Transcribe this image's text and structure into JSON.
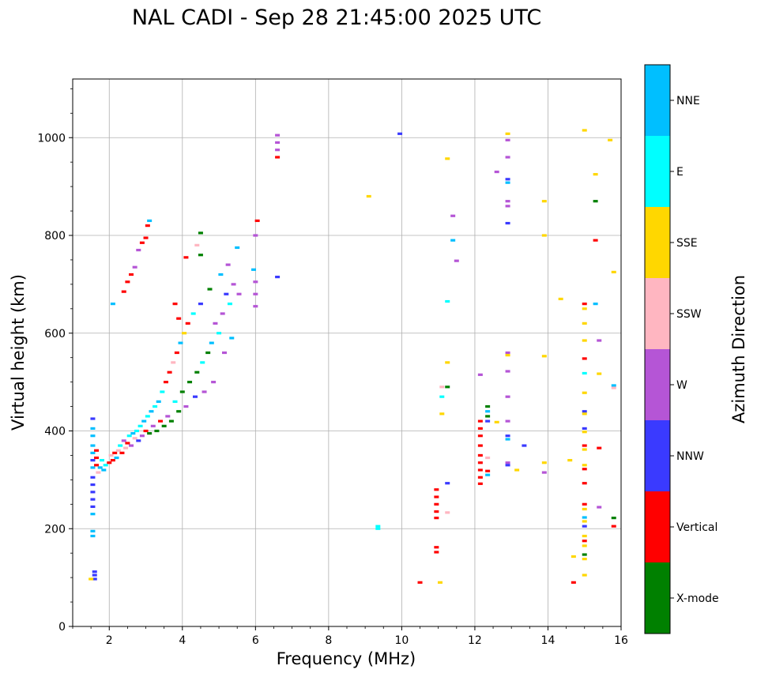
{
  "chart_data": {
    "type": "scatter",
    "title": "NAL CADI - Sep 28 21:45:00 2025 UTC",
    "xlabel": "Frequency (MHz)",
    "ylabel": "Virtual height (km)",
    "xlim": [
      1,
      16
    ],
    "ylim": [
      0,
      1120
    ],
    "xticks": [
      2,
      4,
      6,
      8,
      10,
      12,
      14,
      16
    ],
    "yticks": [
      0,
      200,
      400,
      600,
      800,
      1000
    ],
    "grid": true,
    "colorbar": {
      "label": "Azimuth Direction",
      "categories": [
        {
          "name": "X-mode",
          "color": "#008000"
        },
        {
          "name": "Vertical",
          "color": "#ff0000"
        },
        {
          "name": "NNW",
          "color": "#3a3aff"
        },
        {
          "name": "W",
          "color": "#b555d6"
        },
        {
          "name": "SSW",
          "color": "#ffb6c1"
        },
        {
          "name": "SSE",
          "color": "#ffd700"
        },
        {
          "name": "E",
          "color": "#00ffff"
        },
        {
          "name": "NNE",
          "color": "#00bfff"
        }
      ]
    },
    "points": [
      {
        "f": 1.55,
        "h": 425,
        "c": "NNW"
      },
      {
        "f": 1.55,
        "h": 405,
        "c": "NNE"
      },
      {
        "f": 1.55,
        "h": 390,
        "c": "NNE"
      },
      {
        "f": 1.55,
        "h": 370,
        "c": "NNE"
      },
      {
        "f": 1.55,
        "h": 355,
        "c": "NNE"
      },
      {
        "f": 1.55,
        "h": 340,
        "c": "NNW"
      },
      {
        "f": 1.55,
        "h": 325,
        "c": "NNE"
      },
      {
        "f": 1.55,
        "h": 305,
        "c": "NNW"
      },
      {
        "f": 1.55,
        "h": 290,
        "c": "NNW"
      },
      {
        "f": 1.55,
        "h": 275,
        "c": "NNW"
      },
      {
        "f": 1.55,
        "h": 260,
        "c": "NNW"
      },
      {
        "f": 1.55,
        "h": 245,
        "c": "NNW"
      },
      {
        "f": 1.55,
        "h": 230,
        "c": "NNE"
      },
      {
        "f": 1.55,
        "h": 195,
        "c": "NNE"
      },
      {
        "f": 1.55,
        "h": 185,
        "c": "NNE"
      },
      {
        "f": 1.6,
        "h": 112,
        "c": "NNW"
      },
      {
        "f": 1.6,
        "h": 105,
        "c": "NNW"
      },
      {
        "f": 1.6,
        "h": 97,
        "c": "NNW"
      },
      {
        "f": 1.5,
        "h": 97,
        "c": "SSE"
      },
      {
        "f": 1.65,
        "h": 360,
        "c": "Vertical"
      },
      {
        "f": 1.65,
        "h": 345,
        "c": "Vertical"
      },
      {
        "f": 1.65,
        "h": 330,
        "c": "Vertical"
      },
      {
        "f": 1.7,
        "h": 315,
        "c": "SSW"
      },
      {
        "f": 1.75,
        "h": 325,
        "c": "NNE"
      },
      {
        "f": 1.8,
        "h": 340,
        "c": "E"
      },
      {
        "f": 1.85,
        "h": 320,
        "c": "NNE"
      },
      {
        "f": 1.9,
        "h": 330,
        "c": "E"
      },
      {
        "f": 2.0,
        "h": 335,
        "c": "Vertical"
      },
      {
        "f": 2.05,
        "h": 350,
        "c": "SSW"
      },
      {
        "f": 2.1,
        "h": 340,
        "c": "Vertical"
      },
      {
        "f": 2.15,
        "h": 355,
        "c": "Vertical"
      },
      {
        "f": 2.2,
        "h": 345,
        "c": "NNE"
      },
      {
        "f": 2.25,
        "h": 360,
        "c": "SSW"
      },
      {
        "f": 2.3,
        "h": 370,
        "c": "E"
      },
      {
        "f": 2.35,
        "h": 355,
        "c": "Vertical"
      },
      {
        "f": 2.4,
        "h": 380,
        "c": "W"
      },
      {
        "f": 2.45,
        "h": 365,
        "c": "SSW"
      },
      {
        "f": 2.5,
        "h": 375,
        "c": "Vertical"
      },
      {
        "f": 2.55,
        "h": 390,
        "c": "E"
      },
      {
        "f": 2.6,
        "h": 370,
        "c": "W"
      },
      {
        "f": 2.65,
        "h": 395,
        "c": "NNE"
      },
      {
        "f": 2.7,
        "h": 385,
        "c": "SSW"
      },
      {
        "f": 2.75,
        "h": 400,
        "c": "E"
      },
      {
        "f": 2.8,
        "h": 380,
        "c": "NNW"
      },
      {
        "f": 2.85,
        "h": 410,
        "c": "E"
      },
      {
        "f": 2.9,
        "h": 390,
        "c": "W"
      },
      {
        "f": 2.95,
        "h": 420,
        "c": "NNE"
      },
      {
        "f": 3.0,
        "h": 400,
        "c": "Vertical"
      },
      {
        "f": 3.05,
        "h": 430,
        "c": "E"
      },
      {
        "f": 3.1,
        "h": 395,
        "c": "X-mode"
      },
      {
        "f": 3.15,
        "h": 440,
        "c": "NNE"
      },
      {
        "f": 3.2,
        "h": 410,
        "c": "W"
      },
      {
        "f": 3.25,
        "h": 450,
        "c": "E"
      },
      {
        "f": 3.3,
        "h": 400,
        "c": "X-mode"
      },
      {
        "f": 3.35,
        "h": 460,
        "c": "NNE"
      },
      {
        "f": 3.4,
        "h": 420,
        "c": "Vertical"
      },
      {
        "f": 3.45,
        "h": 480,
        "c": "E"
      },
      {
        "f": 3.5,
        "h": 410,
        "c": "X-mode"
      },
      {
        "f": 3.55,
        "h": 500,
        "c": "Vertical"
      },
      {
        "f": 3.6,
        "h": 430,
        "c": "W"
      },
      {
        "f": 3.65,
        "h": 520,
        "c": "Vertical"
      },
      {
        "f": 3.7,
        "h": 420,
        "c": "X-mode"
      },
      {
        "f": 3.75,
        "h": 540,
        "c": "SSW"
      },
      {
        "f": 3.8,
        "h": 460,
        "c": "E"
      },
      {
        "f": 3.85,
        "h": 560,
        "c": "Vertical"
      },
      {
        "f": 3.9,
        "h": 440,
        "c": "X-mode"
      },
      {
        "f": 3.95,
        "h": 580,
        "c": "NNE"
      },
      {
        "f": 4.0,
        "h": 480,
        "c": "X-mode"
      },
      {
        "f": 4.05,
        "h": 600,
        "c": "SSE"
      },
      {
        "f": 4.1,
        "h": 450,
        "c": "W"
      },
      {
        "f": 4.15,
        "h": 620,
        "c": "Vertical"
      },
      {
        "f": 4.2,
        "h": 500,
        "c": "X-mode"
      },
      {
        "f": 4.3,
        "h": 640,
        "c": "E"
      },
      {
        "f": 4.35,
        "h": 470,
        "c": "NNW"
      },
      {
        "f": 4.4,
        "h": 520,
        "c": "X-mode"
      },
      {
        "f": 4.5,
        "h": 660,
        "c": "NNW"
      },
      {
        "f": 4.55,
        "h": 540,
        "c": "E"
      },
      {
        "f": 4.6,
        "h": 480,
        "c": "W"
      },
      {
        "f": 4.7,
        "h": 560,
        "c": "X-mode"
      },
      {
        "f": 4.75,
        "h": 690,
        "c": "X-mode"
      },
      {
        "f": 4.8,
        "h": 580,
        "c": "NNE"
      },
      {
        "f": 4.85,
        "h": 500,
        "c": "W"
      },
      {
        "f": 4.9,
        "h": 620,
        "c": "W"
      },
      {
        "f": 5.0,
        "h": 600,
        "c": "E"
      },
      {
        "f": 5.05,
        "h": 720,
        "c": "NNE"
      },
      {
        "f": 5.1,
        "h": 640,
        "c": "W"
      },
      {
        "f": 5.15,
        "h": 560,
        "c": "W"
      },
      {
        "f": 5.2,
        "h": 680,
        "c": "NNW"
      },
      {
        "f": 5.25,
        "h": 740,
        "c": "W"
      },
      {
        "f": 5.3,
        "h": 660,
        "c": "E"
      },
      {
        "f": 5.35,
        "h": 590,
        "c": "NNE"
      },
      {
        "f": 5.4,
        "h": 700,
        "c": "W"
      },
      {
        "f": 5.5,
        "h": 775,
        "c": "NNE"
      },
      {
        "f": 5.55,
        "h": 680,
        "c": "W"
      },
      {
        "f": 2.1,
        "h": 660,
        "c": "NNE"
      },
      {
        "f": 2.4,
        "h": 685,
        "c": "Vertical"
      },
      {
        "f": 2.5,
        "h": 705,
        "c": "Vertical"
      },
      {
        "f": 2.6,
        "h": 720,
        "c": "Vertical"
      },
      {
        "f": 2.7,
        "h": 735,
        "c": "W"
      },
      {
        "f": 2.8,
        "h": 770,
        "c": "W"
      },
      {
        "f": 2.9,
        "h": 785,
        "c": "Vertical"
      },
      {
        "f": 3.0,
        "h": 795,
        "c": "Vertical"
      },
      {
        "f": 3.05,
        "h": 820,
        "c": "Vertical"
      },
      {
        "f": 3.1,
        "h": 830,
        "c": "NNE"
      },
      {
        "f": 3.8,
        "h": 660,
        "c": "Vertical"
      },
      {
        "f": 3.9,
        "h": 630,
        "c": "Vertical"
      },
      {
        "f": 4.1,
        "h": 755,
        "c": "Vertical"
      },
      {
        "f": 4.4,
        "h": 780,
        "c": "SSW"
      },
      {
        "f": 4.5,
        "h": 805,
        "c": "X-mode"
      },
      {
        "f": 4.5,
        "h": 760,
        "c": "X-mode"
      },
      {
        "f": 6.0,
        "h": 800,
        "c": "W"
      },
      {
        "f": 6.05,
        "h": 830,
        "c": "Vertical"
      },
      {
        "f": 5.95,
        "h": 730,
        "c": "NNE"
      },
      {
        "f": 6.0,
        "h": 705,
        "c": "W"
      },
      {
        "f": 6.0,
        "h": 680,
        "c": "W"
      },
      {
        "f": 6.0,
        "h": 655,
        "c": "W"
      },
      {
        "f": 6.6,
        "h": 1005,
        "c": "W"
      },
      {
        "f": 6.6,
        "h": 990,
        "c": "W"
      },
      {
        "f": 6.6,
        "h": 975,
        "c": "W"
      },
      {
        "f": 6.6,
        "h": 960,
        "c": "Vertical"
      },
      {
        "f": 6.6,
        "h": 715,
        "c": "NNW"
      },
      {
        "f": 9.1,
        "h": 880,
        "c": "SSE"
      },
      {
        "f": 9.35,
        "h": 205,
        "c": "E"
      },
      {
        "f": 9.35,
        "h": 200,
        "c": "E"
      },
      {
        "f": 9.95,
        "h": 1008,
        "c": "NNW"
      },
      {
        "f": 10.5,
        "h": 90,
        "c": "Vertical"
      },
      {
        "f": 10.95,
        "h": 280,
        "c": "Vertical"
      },
      {
        "f": 10.95,
        "h": 265,
        "c": "Vertical"
      },
      {
        "f": 10.95,
        "h": 250,
        "c": "Vertical"
      },
      {
        "f": 10.95,
        "h": 235,
        "c": "Vertical"
      },
      {
        "f": 10.95,
        "h": 222,
        "c": "Vertical"
      },
      {
        "f": 10.95,
        "h": 162,
        "c": "Vertical"
      },
      {
        "f": 10.95,
        "h": 152,
        "c": "Vertical"
      },
      {
        "f": 11.05,
        "h": 90,
        "c": "SSE"
      },
      {
        "f": 11.1,
        "h": 490,
        "c": "SSW"
      },
      {
        "f": 11.1,
        "h": 470,
        "c": "E"
      },
      {
        "f": 11.1,
        "h": 435,
        "c": "SSE"
      },
      {
        "f": 11.25,
        "h": 957,
        "c": "SSE"
      },
      {
        "f": 11.25,
        "h": 665,
        "c": "E"
      },
      {
        "f": 11.25,
        "h": 540,
        "c": "SSE"
      },
      {
        "f": 11.25,
        "h": 490,
        "c": "X-mode"
      },
      {
        "f": 11.25,
        "h": 293,
        "c": "NNW"
      },
      {
        "f": 11.25,
        "h": 233,
        "c": "SSW"
      },
      {
        "f": 11.4,
        "h": 840,
        "c": "W"
      },
      {
        "f": 11.4,
        "h": 790,
        "c": "NNE"
      },
      {
        "f": 11.5,
        "h": 748,
        "c": "W"
      },
      {
        "f": 12.15,
        "h": 515,
        "c": "W"
      },
      {
        "f": 12.15,
        "h": 420,
        "c": "Vertical"
      },
      {
        "f": 12.15,
        "h": 405,
        "c": "Vertical"
      },
      {
        "f": 12.15,
        "h": 390,
        "c": "Vertical"
      },
      {
        "f": 12.15,
        "h": 370,
        "c": "Vertical"
      },
      {
        "f": 12.15,
        "h": 350,
        "c": "Vertical"
      },
      {
        "f": 12.15,
        "h": 335,
        "c": "Vertical"
      },
      {
        "f": 12.15,
        "h": 320,
        "c": "Vertical"
      },
      {
        "f": 12.15,
        "h": 305,
        "c": "Vertical"
      },
      {
        "f": 12.15,
        "h": 292,
        "c": "Vertical"
      },
      {
        "f": 12.35,
        "h": 450,
        "c": "X-mode"
      },
      {
        "f": 12.35,
        "h": 440,
        "c": "NNE"
      },
      {
        "f": 12.35,
        "h": 430,
        "c": "X-mode"
      },
      {
        "f": 12.35,
        "h": 420,
        "c": "NNW"
      },
      {
        "f": 12.35,
        "h": 345,
        "c": "SSW"
      },
      {
        "f": 12.35,
        "h": 318,
        "c": "Vertical"
      },
      {
        "f": 12.35,
        "h": 310,
        "c": "NNE"
      },
      {
        "f": 12.6,
        "h": 930,
        "c": "W"
      },
      {
        "f": 12.6,
        "h": 418,
        "c": "SSE"
      },
      {
        "f": 12.9,
        "h": 1008,
        "c": "SSE"
      },
      {
        "f": 12.9,
        "h": 995,
        "c": "W"
      },
      {
        "f": 12.9,
        "h": 960,
        "c": "W"
      },
      {
        "f": 12.9,
        "h": 915,
        "c": "NNW"
      },
      {
        "f": 12.9,
        "h": 908,
        "c": "NNE"
      },
      {
        "f": 12.9,
        "h": 870,
        "c": "W"
      },
      {
        "f": 12.9,
        "h": 860,
        "c": "W"
      },
      {
        "f": 12.9,
        "h": 825,
        "c": "NNW"
      },
      {
        "f": 12.9,
        "h": 560,
        "c": "W"
      },
      {
        "f": 12.9,
        "h": 555,
        "c": "SSE"
      },
      {
        "f": 12.9,
        "h": 522,
        "c": "W"
      },
      {
        "f": 12.9,
        "h": 470,
        "c": "W"
      },
      {
        "f": 12.9,
        "h": 420,
        "c": "W"
      },
      {
        "f": 12.9,
        "h": 390,
        "c": "NNW"
      },
      {
        "f": 12.9,
        "h": 383,
        "c": "NNE"
      },
      {
        "f": 12.9,
        "h": 335,
        "c": "W"
      },
      {
        "f": 12.9,
        "h": 330,
        "c": "NNW"
      },
      {
        "f": 13.15,
        "h": 320,
        "c": "SSE"
      },
      {
        "f": 13.35,
        "h": 370,
        "c": "NNW"
      },
      {
        "f": 13.9,
        "h": 870,
        "c": "SSE"
      },
      {
        "f": 13.9,
        "h": 800,
        "c": "SSE"
      },
      {
        "f": 13.9,
        "h": 553,
        "c": "SSE"
      },
      {
        "f": 13.9,
        "h": 335,
        "c": "SSE"
      },
      {
        "f": 13.9,
        "h": 315,
        "c": "W"
      },
      {
        "f": 14.35,
        "h": 670,
        "c": "SSE"
      },
      {
        "f": 14.6,
        "h": 340,
        "c": "SSE"
      },
      {
        "f": 14.7,
        "h": 143,
        "c": "SSE"
      },
      {
        "f": 14.7,
        "h": 90,
        "c": "Vertical"
      },
      {
        "f": 15.0,
        "h": 1015,
        "c": "SSE"
      },
      {
        "f": 15.0,
        "h": 660,
        "c": "Vertical"
      },
      {
        "f": 15.0,
        "h": 650,
        "c": "SSE"
      },
      {
        "f": 15.0,
        "h": 620,
        "c": "SSE"
      },
      {
        "f": 15.0,
        "h": 585,
        "c": "SSE"
      },
      {
        "f": 15.0,
        "h": 548,
        "c": "Vertical"
      },
      {
        "f": 15.0,
        "h": 518,
        "c": "E"
      },
      {
        "f": 15.0,
        "h": 478,
        "c": "SSE"
      },
      {
        "f": 15.0,
        "h": 440,
        "c": "NNW"
      },
      {
        "f": 15.0,
        "h": 435,
        "c": "SSE"
      },
      {
        "f": 15.0,
        "h": 405,
        "c": "NNW"
      },
      {
        "f": 15.0,
        "h": 398,
        "c": "SSE"
      },
      {
        "f": 15.0,
        "h": 370,
        "c": "Vertical"
      },
      {
        "f": 15.0,
        "h": 362,
        "c": "SSE"
      },
      {
        "f": 15.0,
        "h": 330,
        "c": "SSE"
      },
      {
        "f": 15.0,
        "h": 322,
        "c": "Vertical"
      },
      {
        "f": 15.0,
        "h": 293,
        "c": "Vertical"
      },
      {
        "f": 15.0,
        "h": 250,
        "c": "Vertical"
      },
      {
        "f": 15.0,
        "h": 240,
        "c": "SSE"
      },
      {
        "f": 15.0,
        "h": 223,
        "c": "NNE"
      },
      {
        "f": 15.0,
        "h": 215,
        "c": "SSE"
      },
      {
        "f": 15.0,
        "h": 205,
        "c": "NNW"
      },
      {
        "f": 15.0,
        "h": 185,
        "c": "SSE"
      },
      {
        "f": 15.0,
        "h": 175,
        "c": "Vertical"
      },
      {
        "f": 15.0,
        "h": 165,
        "c": "SSE"
      },
      {
        "f": 15.0,
        "h": 147,
        "c": "X-mode"
      },
      {
        "f": 15.0,
        "h": 138,
        "c": "SSE"
      },
      {
        "f": 15.0,
        "h": 105,
        "c": "SSE"
      },
      {
        "f": 15.3,
        "h": 925,
        "c": "SSE"
      },
      {
        "f": 15.3,
        "h": 870,
        "c": "X-mode"
      },
      {
        "f": 15.3,
        "h": 790,
        "c": "Vertical"
      },
      {
        "f": 15.3,
        "h": 660,
        "c": "NNE"
      },
      {
        "f": 15.4,
        "h": 585,
        "c": "W"
      },
      {
        "f": 15.4,
        "h": 517,
        "c": "SSE"
      },
      {
        "f": 15.4,
        "h": 365,
        "c": "Vertical"
      },
      {
        "f": 15.4,
        "h": 244,
        "c": "W"
      },
      {
        "f": 15.7,
        "h": 995,
        "c": "SSE"
      },
      {
        "f": 15.8,
        "h": 725,
        "c": "SSE"
      },
      {
        "f": 15.8,
        "h": 493,
        "c": "NNE"
      },
      {
        "f": 15.8,
        "h": 488,
        "c": "SSW"
      },
      {
        "f": 15.8,
        "h": 222,
        "c": "X-mode"
      },
      {
        "f": 15.8,
        "h": 205,
        "c": "Vertical"
      }
    ]
  }
}
